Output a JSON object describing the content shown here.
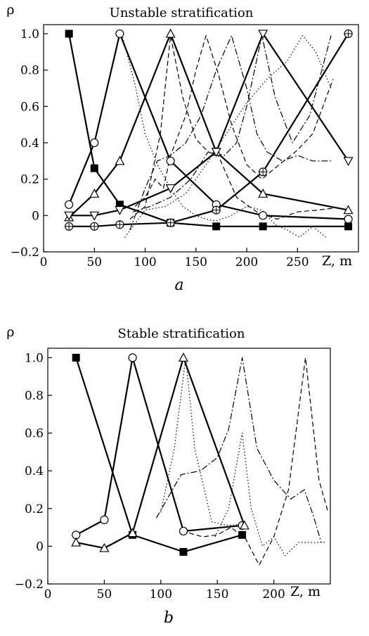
{
  "chart_data": [
    {
      "type": "line",
      "panel_label": "a",
      "title": "Unstable stratification",
      "ylabel": "ρ",
      "xlabel": "Z, m",
      "xlim": [
        0,
        310
      ],
      "ylim": [
        -0.2,
        1.05
      ],
      "xticks": [
        "0",
        "50",
        "100",
        "150",
        "200",
        "250"
      ],
      "xtick_values": [
        0,
        50,
        100,
        150,
        200,
        250
      ],
      "yticks": [
        "−0.2",
        "0",
        "0.2",
        "0.4",
        "0.6",
        "0.8",
        "1.0"
      ],
      "ytick_values": [
        -0.2,
        0,
        0.2,
        0.4,
        0.6,
        0.8,
        1.0
      ],
      "series": [
        {
          "marker": "square",
          "style": "solid",
          "x": [
            25,
            50,
            75,
            125,
            170,
            216,
            300
          ],
          "y": [
            1.0,
            0.26,
            0.06,
            -0.04,
            -0.06,
            -0.06,
            -0.06
          ]
        },
        {
          "marker": "circle",
          "style": "solid",
          "x": [
            25,
            50,
            75,
            125,
            170,
            216,
            300
          ],
          "y": [
            0.06,
            0.4,
            1.0,
            0.3,
            0.06,
            0.0,
            -0.02
          ]
        },
        {
          "marker": "triangle",
          "style": "solid",
          "x": [
            25,
            50,
            75,
            125,
            170,
            216,
            300
          ],
          "y": [
            -0.01,
            0.12,
            0.3,
            1.0,
            0.35,
            0.12,
            0.03
          ]
        },
        {
          "marker": "triangle-down",
          "style": "solid",
          "x": [
            25,
            50,
            75,
            125,
            170,
            216,
            300
          ],
          "y": [
            0.0,
            0.0,
            0.03,
            0.15,
            0.35,
            1.0,
            0.3
          ]
        },
        {
          "marker": "circle-plus",
          "style": "solid",
          "x": [
            25,
            50,
            75,
            125,
            170,
            216,
            300
          ],
          "y": [
            -0.06,
            -0.06,
            -0.05,
            -0.04,
            0.03,
            0.24,
            1.0
          ]
        },
        {
          "marker": "none",
          "style": "dotted",
          "x": [
            78,
            90,
            100,
            112,
            125,
            137,
            150,
            160,
            170,
            185,
            200,
            215,
            228,
            240,
            252,
            265,
            278
          ],
          "y": [
            0.98,
            0.72,
            0.45,
            0.28,
            0.15,
            0.05,
            0.0,
            -0.02,
            -0.03,
            0.0,
            0.05,
            0.03,
            -0.05,
            -0.08,
            -0.12,
            -0.06,
            -0.12
          ]
        },
        {
          "marker": "none",
          "style": "dotted",
          "x": [
            80,
            100,
            120,
            140,
            160,
            180,
            200,
            220,
            240,
            255,
            268,
            283
          ],
          "y": [
            -0.12,
            0.03,
            0.05,
            0.12,
            0.28,
            0.45,
            0.62,
            0.75,
            0.85,
            0.99,
            0.9,
            0.7
          ]
        },
        {
          "marker": "none",
          "style": "dashed",
          "x": [
            85,
            100,
            115,
            125,
            137,
            150,
            162,
            172,
            190,
            210,
            230,
            250,
            270,
            285
          ],
          "y": [
            -0.02,
            0.05,
            0.45,
            0.99,
            0.65,
            0.42,
            0.35,
            0.33,
            0.1,
            0.02,
            -0.02,
            0.02,
            0.03,
            0.04
          ]
        },
        {
          "marker": "none",
          "style": "dashed",
          "x": [
            90,
            100,
            110,
            118,
            125,
            140,
            150,
            160,
            172,
            185,
            200,
            215,
            232,
            250,
            265,
            285
          ],
          "y": [
            0.05,
            0.1,
            0.2,
            0.15,
            0.33,
            0.55,
            0.8,
            0.99,
            0.78,
            0.5,
            0.28,
            0.2,
            0.28,
            0.36,
            0.45,
            0.75
          ]
        },
        {
          "marker": "none",
          "style": "dashdot",
          "x": [
            85,
            100,
            112,
            125,
            140,
            155,
            170,
            185,
            200,
            210,
            220,
            235,
            250,
            265,
            283
          ],
          "y": [
            -0.08,
            0.15,
            0.3,
            0.33,
            0.4,
            0.55,
            0.8,
            0.99,
            0.7,
            0.45,
            0.35,
            0.3,
            0.33,
            0.3,
            0.3
          ]
        },
        {
          "marker": "none",
          "style": "dashdot",
          "x": [
            88,
            105,
            125,
            145,
            162,
            178,
            190,
            200,
            215,
            228,
            245,
            262,
            283
          ],
          "y": [
            0.02,
            0.05,
            0.1,
            0.2,
            0.35,
            0.33,
            0.4,
            0.6,
            0.99,
            0.65,
            0.4,
            0.55,
            0.99
          ]
        }
      ]
    },
    {
      "type": "line",
      "panel_label": "b",
      "title": "Stable stratification",
      "ylabel": "ρ",
      "xlabel": "Z, m",
      "xlim": [
        0,
        250
      ],
      "ylim": [
        -0.2,
        1.05
      ],
      "xticks": [
        "0",
        "50",
        "100",
        "150",
        "200"
      ],
      "xtick_values": [
        0,
        50,
        100,
        150,
        200
      ],
      "yticks": [
        "−0.2",
        "0",
        "0.2",
        "0.4",
        "0.6",
        "0.8",
        "1.0"
      ],
      "ytick_values": [
        -0.2,
        0,
        0.2,
        0.4,
        0.6,
        0.8,
        1.0
      ],
      "series": [
        {
          "marker": "square",
          "style": "solid",
          "x": [
            25,
            75,
            120,
            172
          ],
          "y": [
            1.0,
            0.06,
            -0.03,
            0.06
          ]
        },
        {
          "marker": "circle",
          "style": "solid",
          "x": [
            25,
            50,
            75,
            120,
            172
          ],
          "y": [
            0.06,
            0.14,
            1.0,
            0.08,
            0.11
          ]
        },
        {
          "marker": "triangle",
          "style": "solid",
          "x": [
            25,
            50,
            75,
            120,
            174
          ],
          "y": [
            0.02,
            -0.01,
            0.07,
            1.0,
            0.11
          ]
        },
        {
          "marker": "none",
          "style": "dotted",
          "x": [
            100,
            112,
            122,
            130,
            145,
            160,
            174
          ],
          "y": [
            0.18,
            0.52,
            1.0,
            0.52,
            0.13,
            0.11,
            0.12
          ]
        },
        {
          "marker": "none",
          "style": "dashdot",
          "x": [
            96,
            118,
            135,
            150,
            160,
            172,
            185,
            200,
            215,
            227,
            235,
            242
          ],
          "y": [
            0.15,
            0.38,
            0.4,
            0.47,
            0.62,
            1.0,
            0.52,
            0.35,
            0.25,
            0.3,
            0.16,
            0.02
          ]
        },
        {
          "marker": "none",
          "style": "dashed",
          "x": [
            125,
            137,
            150,
            162,
            175,
            187,
            200,
            213,
            228,
            240,
            248
          ],
          "y": [
            0.07,
            0.05,
            0.06,
            0.1,
            0.04,
            -0.1,
            0.05,
            0.3,
            1.0,
            0.35,
            0.18
          ]
        },
        {
          "marker": "none",
          "style": "dotted",
          "x": [
            148,
            160,
            172,
            180,
            190,
            200,
            210,
            222,
            235,
            246
          ],
          "y": [
            0.05,
            0.2,
            0.6,
            0.2,
            0.0,
            0.05,
            -0.05,
            0.02,
            0.02,
            0.02
          ]
        }
      ]
    }
  ]
}
